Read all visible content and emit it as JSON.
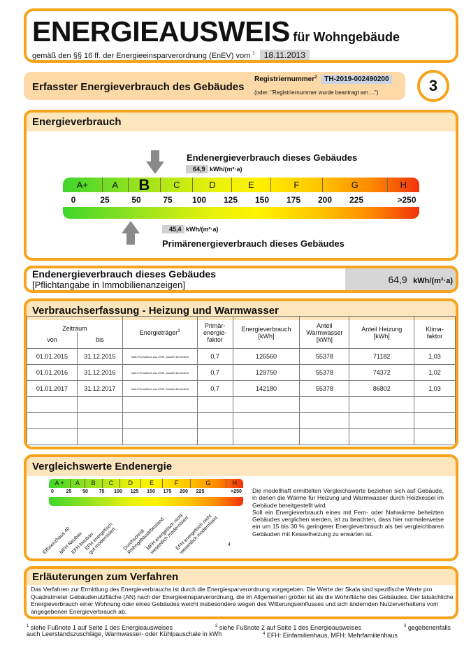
{
  "header": {
    "title": "ENERGIEAUSWEIS",
    "title_suffix": "für Wohngebäude",
    "subtitle": "gemäß den §§ 16 ff. der Energieeinsparverordnung (EnEV) vom",
    "subtitle_sup": "1",
    "date": "18.11.2013"
  },
  "section_bar": {
    "title": "Erfasster Energieverbrauch des Gebäudes",
    "reg_label": "Registriernummer",
    "reg_sup": "2",
    "reg_number": "TH-2019-002490200",
    "reg_note": "(oder: \"Registriernummer wurde beantragt am ...\")",
    "page_number": "3"
  },
  "energieverbrauch": {
    "title": "Energieverbrauch",
    "end_label": "Endenergieverbrauch dieses Gebäudes",
    "end_value": "64,9",
    "primary_label": "Primärenergieverbrauch dieses Gebäudes",
    "primary_value": "45,4",
    "unit": "kWh/(m²·a)",
    "classes": [
      "A+",
      "A",
      "B",
      "C",
      "D",
      "E",
      "F",
      "G",
      "H"
    ],
    "current_class": "B",
    "ticks": [
      "0",
      "25",
      "50",
      "75",
      "100",
      "125",
      "150",
      "175",
      "200",
      "225",
      ">250"
    ]
  },
  "endenergie_box": {
    "title": "Endenergieverbrauch dieses Gebäudes",
    "subtitle": "[Pflichtangabe in Immobilienanzeigen]",
    "value": "64,9",
    "unit": "kWh/(m²·a)"
  },
  "verbrauch": {
    "title": "Verbrauchserfassung - Heizung und Warmwasser",
    "headers": {
      "zeitraum": "Zeitraum",
      "von": "von",
      "bis": "bis",
      "traeger": "Energieträger",
      "traeger_sup": "3",
      "primaer": "Primär-\nenergie-\nfaktor",
      "verbrauch": "Energieverbrauch\n[kWh]",
      "warmwasser": "Anteil\nWarmwasser\n[kWh]",
      "heizung": "Anteil Heizung\n[kWh]",
      "klima": "Klima-\nfaktor"
    },
    "rows": [
      {
        "von": "01.01.2015",
        "bis": "31.12.2015",
        "traeger": "Nah-/Fernwärme aus KWK, fossiler Brennstoff",
        "primaer": "0,7",
        "verbrauch": "126560",
        "warmwasser": "55378",
        "heizung": "71182",
        "klima": "1,03"
      },
      {
        "von": "01.01.2016",
        "bis": "31.12.2016",
        "traeger": "Nah-/Fernwärme aus KWK, fossiler Brennstoff",
        "primaer": "0,7",
        "verbrauch": "129750",
        "warmwasser": "55378",
        "heizung": "74372",
        "klima": "1,02"
      },
      {
        "von": "01.01.2017",
        "bis": "31.12.2017",
        "traeger": "Nah-/Fernwärme aus KWK, fossiler Brennstoff",
        "primaer": "0,7",
        "verbrauch": "142180",
        "warmwasser": "55378",
        "heizung": "86802",
        "klima": "1,03"
      }
    ]
  },
  "vergleich": {
    "title": "Vergleichswerte Endenergie",
    "classes": [
      "A +",
      "A",
      "B",
      "C",
      "D",
      "E",
      "F",
      "G",
      "H"
    ],
    "ticks": [
      "0",
      "25",
      "50",
      "75",
      "100",
      "125",
      "150",
      "175",
      "200",
      "225",
      ">250"
    ],
    "refs": [
      "Effizienzhaus 40",
      "MFH Neubau",
      "EFH Neubau",
      "EFH energetisch\ngut modernisiert",
      "Durchschnitt\nWohngebäudebestand",
      "MFH energetisch nicht\nwesentlich modernisiert",
      "EFH energetisch nicht\nwesentlich modernisiert"
    ],
    "footnote_mark": "4",
    "text": "Die modellhaft ermittelten Vergleichswerte beziehen sich auf Gebäude, in denen die Wärme für Heizung und Warmwasser durch Heizkessel im Gebäude bereitgestellt wird.\nSoll ein Energieverbrauch eines mit Fern- oder Nahwärme beheizten Gebäudes verglichen werden, ist zu beachten, dass hier normalerweise ein um 15 bis 30 % geringerer Energieverbrauch als bei vergleichbaren Gebäuden mit Kesselheizung zu erwarten ist."
  },
  "erlaeuterung": {
    "title": "Erläuterungen zum Verfahren",
    "text": "Das Verfahren zur Ermittlung des Energieverbrauchs ist durch die Energiesparverordnung vorgegeben. Die Werte der Skala sind spezifische Werte pro Quadratmeter Gebäudenutzfläche (AN) nach der Energieeinsparverordnung, die im Allgemeinen größer ist als die Wohnfläche des Gebäudes. Der tatsächliche Energieverbrauch einer Wohnung oder eines Gebäudes weicht insbesondere wegen des Witterungseinflusses und sich ändernden Nutzerverhaltens vom angegebenen Energieverbrauch ab."
  },
  "footnotes": {
    "f1": "siehe Fußnote 1 auf Seite 1 des Energieausweises",
    "f2": "siehe Fußnote 2 auf Seite 1 des Energieausweises",
    "f3": "gegebenenfalls",
    "f3b": "auch Leerstandszuschläge, Warmwasser- oder Kühlpauschale in kWh",
    "f4": "EFH: Einfamilienhaus, MFH: Mehrfamilienhaus"
  },
  "colors": {
    "accent": "#f5a51c",
    "band": "#fde6bd"
  }
}
